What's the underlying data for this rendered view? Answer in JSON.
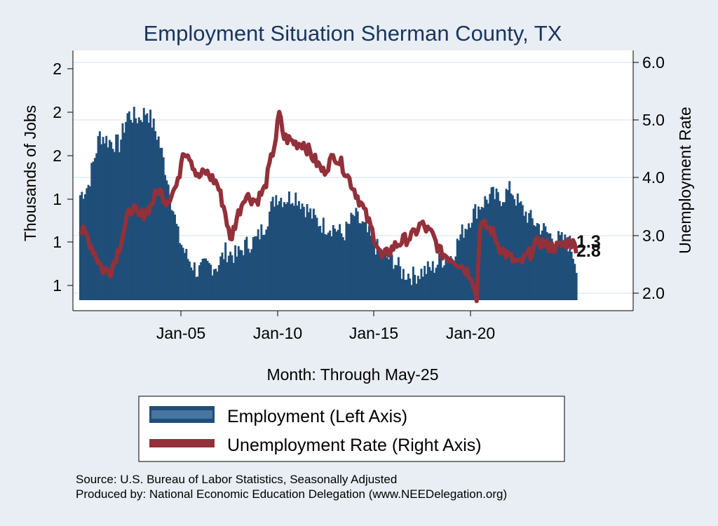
{
  "chart_data": {
    "type": "bar+line",
    "title": "Employment Situation Sherman  County, TX",
    "xlabel": "Month: Through May-25",
    "ylabel_left": "Thousands of Jobs",
    "ylabel_right": "Unemployment Rate",
    "x_ticks": [
      "Jan-05",
      "Jan-10",
      "Jan-15",
      "Jan-20"
    ],
    "left_tick_labels": [
      "1",
      "1",
      "1",
      "2",
      "2",
      "2"
    ],
    "right_tick_labels": [
      "2.0",
      "3.0",
      "4.0",
      "5.0",
      "6.0"
    ],
    "left_ylim": [
      1.08,
      2.26
    ],
    "right_ylim": [
      1.85,
      6.05
    ],
    "employment_series": {
      "name": "Employment (Left Axis)",
      "color": "#1f4e79",
      "start": "Jan-00",
      "end": "May-25",
      "anchors": [
        [
          "Jan-00",
          1.6
        ],
        [
          "Jun-00",
          1.65
        ],
        [
          "Jan-01",
          1.9
        ],
        [
          "Jun-01",
          1.87
        ],
        [
          "Jan-02",
          1.85
        ],
        [
          "Jun-02",
          2.0
        ],
        [
          "Jan-03",
          1.98
        ],
        [
          "Jun-03",
          2.02
        ],
        [
          "Jan-04",
          1.88
        ],
        [
          "Jun-04",
          1.7
        ],
        [
          "Jan-05",
          1.4
        ],
        [
          "Jun-05",
          1.3
        ],
        [
          "Jan-06",
          1.22
        ],
        [
          "Jun-06",
          1.25
        ],
        [
          "Jan-07",
          1.25
        ],
        [
          "Jun-07",
          1.32
        ],
        [
          "Jan-08",
          1.3
        ],
        [
          "Jun-08",
          1.35
        ],
        [
          "Jan-09",
          1.38
        ],
        [
          "Jun-09",
          1.45
        ],
        [
          "Jan-10",
          1.6
        ],
        [
          "Jun-10",
          1.58
        ],
        [
          "Jan-11",
          1.6
        ],
        [
          "Jun-11",
          1.55
        ],
        [
          "Jan-12",
          1.48
        ],
        [
          "Jun-12",
          1.45
        ],
        [
          "Jan-13",
          1.44
        ],
        [
          "Jun-13",
          1.4
        ],
        [
          "Jan-14",
          1.5
        ],
        [
          "Jun-14",
          1.45
        ],
        [
          "Jan-15",
          1.36
        ],
        [
          "Jun-15",
          1.3
        ],
        [
          "Jan-16",
          1.28
        ],
        [
          "Jun-16",
          1.22
        ],
        [
          "Jan-17",
          1.2
        ],
        [
          "Jun-17",
          1.22
        ],
        [
          "Jan-18",
          1.24
        ],
        [
          "Jun-18",
          1.28
        ],
        [
          "Jan-19",
          1.3
        ],
        [
          "Jun-19",
          1.4
        ],
        [
          "Jan-20",
          1.5
        ],
        [
          "Jun-20",
          1.55
        ],
        [
          "Jan-21",
          1.6
        ],
        [
          "Jun-21",
          1.58
        ],
        [
          "Jan-22",
          1.63
        ],
        [
          "Jun-22",
          1.55
        ],
        [
          "Jan-23",
          1.48
        ],
        [
          "Jun-23",
          1.45
        ],
        [
          "Jan-24",
          1.4
        ],
        [
          "Jun-24",
          1.38
        ],
        [
          "Jan-25",
          1.36
        ],
        [
          "May-25",
          1.26
        ]
      ]
    },
    "unemployment_series": {
      "name": "Unemployment Rate (Right Axis)",
      "color": "#933039",
      "start": "Jan-00",
      "end": "May-25",
      "anchors": [
        [
          "Jan-00",
          3.1
        ],
        [
          "May-00",
          3.0
        ],
        [
          "Oct-00",
          2.7
        ],
        [
          "Mar-01",
          2.4
        ],
        [
          "Aug-01",
          2.4
        ],
        [
          "Jan-02",
          2.8
        ],
        [
          "Jun-02",
          3.3
        ],
        [
          "Sep-02",
          3.5
        ],
        [
          "Jan-03",
          3.3
        ],
        [
          "Aug-03",
          3.5
        ],
        [
          "Jan-04",
          3.8
        ],
        [
          "Jun-04",
          3.6
        ],
        [
          "Jan-05",
          3.9
        ],
        [
          "Apr-05",
          4.5
        ],
        [
          "Aug-05",
          4.4
        ],
        [
          "Jan-06",
          4.0
        ],
        [
          "Jun-06",
          4.1
        ],
        [
          "Jan-07",
          3.9
        ],
        [
          "Jun-07",
          3.4
        ],
        [
          "Sep-07",
          2.9
        ],
        [
          "Jan-08",
          3.3
        ],
        [
          "Jun-08",
          3.7
        ],
        [
          "Jan-09",
          3.6
        ],
        [
          "Jun-09",
          3.8
        ],
        [
          "Jan-10",
          4.7
        ],
        [
          "Mar-10",
          5.1
        ],
        [
          "Jun-10",
          4.7
        ],
        [
          "Jan-11",
          4.6
        ],
        [
          "Jun-11",
          4.6
        ],
        [
          "Jan-12",
          4.3
        ],
        [
          "Jun-12",
          4.1
        ],
        [
          "Jan-13",
          4.4
        ],
        [
          "Jun-13",
          4.2
        ],
        [
          "Jan-14",
          3.8
        ],
        [
          "Jun-14",
          3.5
        ],
        [
          "Jan-15",
          3.0
        ],
        [
          "Jun-15",
          2.6
        ],
        [
          "Jan-16",
          2.8
        ],
        [
          "Jun-16",
          2.9
        ],
        [
          "Jan-17",
          3.0
        ],
        [
          "Jun-17",
          3.2
        ],
        [
          "Jan-18",
          3.0
        ],
        [
          "Jun-18",
          2.7
        ],
        [
          "Jan-19",
          2.6
        ],
        [
          "Jun-19",
          2.5
        ],
        [
          "Jan-20",
          2.3
        ],
        [
          "Apr-20",
          1.9
        ],
        [
          "Jun-20",
          3.2
        ],
        [
          "Jan-21",
          3.1
        ],
        [
          "Jun-21",
          2.8
        ],
        [
          "Jan-22",
          2.6
        ],
        [
          "Jun-22",
          2.5
        ],
        [
          "Jan-23",
          2.7
        ],
        [
          "Jun-23",
          2.9
        ],
        [
          "Jan-24",
          2.8
        ],
        [
          "Jun-24",
          2.8
        ],
        [
          "Jan-25",
          2.9
        ],
        [
          "May-25",
          2.8
        ]
      ]
    },
    "end_labels": [
      "1.3",
      "2.8"
    ],
    "legend": [
      "Employment (Left Axis)",
      "Unemployment Rate (Right Axis)"
    ],
    "grid": true
  },
  "source": "Source: U.S. Bureau of Labor Statistics, Seasonally Adjusted",
  "produced_by": "Produced by: National Economic Education Delegation (www.NEEDelegation.org)"
}
